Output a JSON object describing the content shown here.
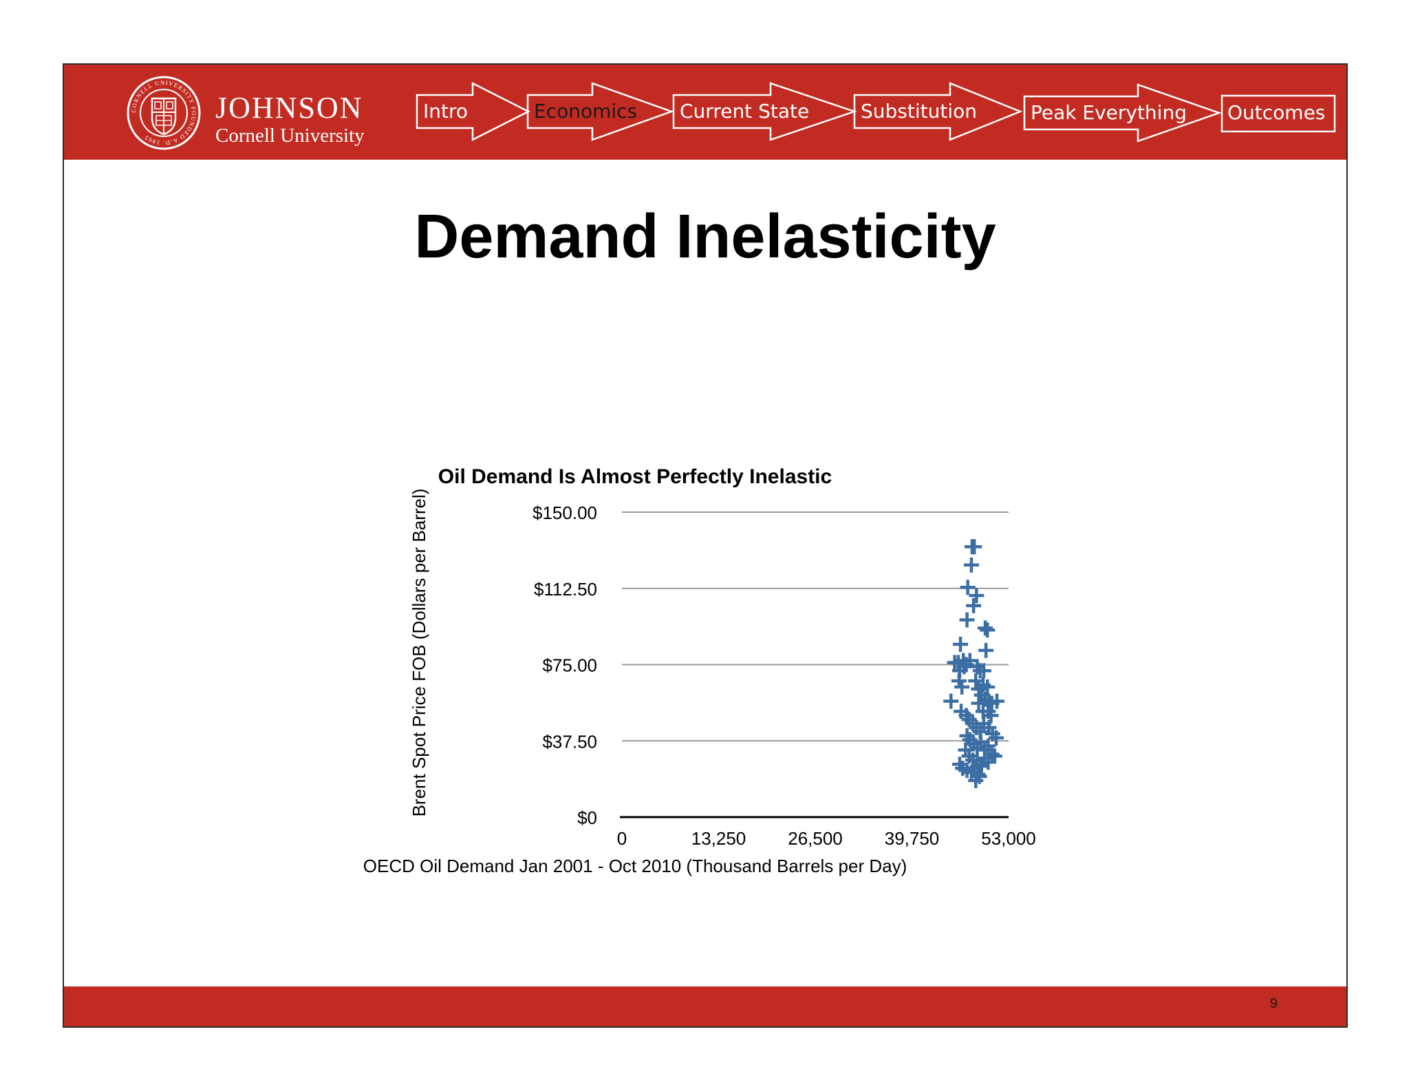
{
  "header": {
    "logo": {
      "wordmark": "JOHNSON",
      "subtitle": "Cornell University",
      "seal_text": "CORNELL UNIVERSITY FOUNDED A.D. 1865"
    },
    "nav": [
      {
        "label": "Intro",
        "active": false
      },
      {
        "label": "Economics",
        "active": true
      },
      {
        "label": "Current State",
        "active": false
      },
      {
        "label": "Substitution",
        "active": false
      },
      {
        "label": "Peak Everything",
        "active": false
      },
      {
        "label": "Outcomes",
        "active": false
      }
    ]
  },
  "slide": {
    "title": "Demand Inelasticity",
    "page_number": "9"
  },
  "colors": {
    "brand_red": "#c22b22",
    "marker": "#3d6ea3",
    "grid": "#999999"
  },
  "chart_data": {
    "type": "scatter",
    "title": "Oil Demand Is Almost Perfectly Inelastic",
    "xlabel": "OECD Oil Demand Jan 2001 - Oct 2010 (Thousand Barrels per Day)",
    "ylabel": "Brent Spot Price FOB (Dollars per Barrel)",
    "xlim": [
      0,
      53000
    ],
    "ylim": [
      0,
      150
    ],
    "x_ticks": [
      "0",
      "13,250",
      "26,500",
      "39,750",
      "53,000"
    ],
    "x_tick_values": [
      0,
      13250,
      26500,
      39750,
      53000
    ],
    "y_ticks": [
      "$0",
      "$37.50",
      "$75.00",
      "$112.50",
      "$150.00"
    ],
    "y_tick_values": [
      0,
      37.5,
      75,
      112.5,
      150
    ],
    "grid": true,
    "legend": "none",
    "marker": "plus",
    "points": [
      [
        48000,
        133
      ],
      [
        48300,
        133
      ],
      [
        47900,
        124
      ],
      [
        47400,
        113
      ],
      [
        48600,
        109
      ],
      [
        48200,
        104
      ],
      [
        47300,
        97
      ],
      [
        49800,
        93
      ],
      [
        50100,
        92
      ],
      [
        49900,
        82
      ],
      [
        46400,
        85
      ],
      [
        46100,
        76
      ],
      [
        46800,
        77
      ],
      [
        47200,
        75
      ],
      [
        47700,
        77
      ],
      [
        45600,
        76
      ],
      [
        46300,
        72
      ],
      [
        46900,
        74
      ],
      [
        48700,
        74
      ],
      [
        49100,
        72
      ],
      [
        49600,
        72
      ],
      [
        46200,
        67
      ],
      [
        46600,
        64
      ],
      [
        48500,
        67
      ],
      [
        48900,
        63
      ],
      [
        49500,
        65
      ],
      [
        50100,
        64
      ],
      [
        49300,
        60
      ],
      [
        49800,
        58
      ],
      [
        50300,
        57
      ],
      [
        50700,
        56
      ],
      [
        51400,
        57
      ],
      [
        45100,
        57
      ],
      [
        48900,
        56
      ],
      [
        49500,
        52
      ],
      [
        50200,
        52
      ],
      [
        50600,
        50
      ],
      [
        46500,
        52
      ],
      [
        47200,
        50
      ],
      [
        47600,
        48
      ],
      [
        48100,
        46
      ],
      [
        48600,
        44
      ],
      [
        49100,
        42
      ],
      [
        49600,
        46
      ],
      [
        50300,
        44
      ],
      [
        50800,
        41
      ],
      [
        51300,
        39
      ],
      [
        47300,
        40
      ],
      [
        47700,
        38
      ],
      [
        48200,
        36
      ],
      [
        48700,
        34
      ],
      [
        49200,
        37
      ],
      [
        49700,
        33
      ],
      [
        50200,
        35
      ],
      [
        50700,
        31
      ],
      [
        51100,
        30
      ],
      [
        47100,
        33
      ],
      [
        47600,
        30
      ],
      [
        48100,
        28
      ],
      [
        48700,
        28
      ],
      [
        49200,
        26
      ],
      [
        49700,
        29
      ],
      [
        50200,
        27
      ],
      [
        46300,
        26
      ],
      [
        46700,
        24
      ],
      [
        47300,
        23
      ],
      [
        47900,
        22
      ],
      [
        48300,
        24
      ],
      [
        48800,
        21
      ],
      [
        49300,
        25
      ],
      [
        48500,
        18
      ],
      [
        49000,
        20
      ]
    ]
  }
}
